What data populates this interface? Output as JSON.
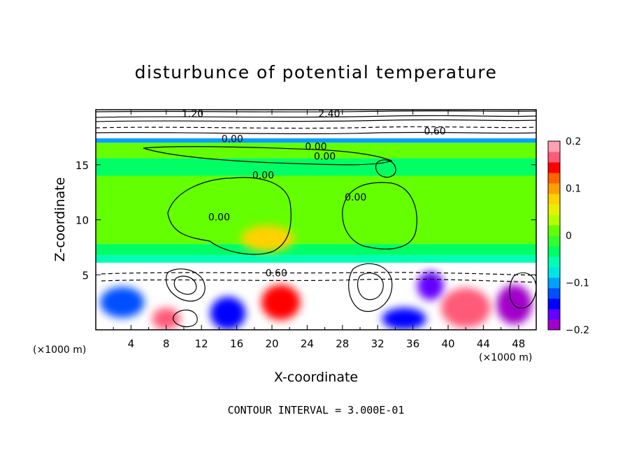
{
  "chart_data": {
    "type": "heatmap",
    "title": "disturbunce of potential temperature",
    "xlabel": "X-coordinate",
    "ylabel": "Z-coordinate",
    "x_unit": "(×1000 m)",
    "z_unit": "(×1000 m)",
    "xlim": [
      0,
      50
    ],
    "ylim": [
      0,
      20
    ],
    "x_ticks": [
      4,
      8,
      12,
      16,
      20,
      24,
      28,
      32,
      36,
      40,
      44,
      48
    ],
    "y_ticks": [
      5,
      10,
      15
    ],
    "colorbar": {
      "range": [
        -0.2,
        0.2
      ],
      "ticks": [
        {
          "value": 0.2,
          "label": "0.2"
        },
        {
          "value": 0.1,
          "label": "0.1"
        },
        {
          "value": 0,
          "label": "0"
        },
        {
          "value": -0.1,
          "label": "−0.1"
        },
        {
          "value": -0.2,
          "label": "−0.2"
        }
      ],
      "colors": [
        "#a000c8",
        "#6400ff",
        "#0000ff",
        "#0050ff",
        "#00a0ff",
        "#00e6e6",
        "#00ffb4",
        "#00ff64",
        "#32ff32",
        "#64ff00",
        "#b4ff00",
        "#e6f000",
        "#ffd200",
        "#ffa000",
        "#ff6400",
        "#ff0000",
        "#ff5a78",
        "#ffa0b4"
      ]
    },
    "bands": [
      {
        "z0": 0,
        "z1": 6.1,
        "value": 0.3
      },
      {
        "z0": 6.1,
        "z1": 6.8,
        "value": -0.06
      },
      {
        "z0": 6.8,
        "z1": 7.8,
        "value": -0.03
      },
      {
        "z0": 7.8,
        "z1": 14.0,
        "value": 0.0
      },
      {
        "z0": 14.0,
        "z1": 15.6,
        "value": -0.03
      },
      {
        "z0": 15.6,
        "z1": 17.0,
        "value": 0.0
      },
      {
        "z0": 17.0,
        "z1": 17.4,
        "value": -0.09
      },
      {
        "z0": 17.4,
        "z1": 20,
        "value": 0.4
      }
    ],
    "blobs": [
      {
        "x": 19.5,
        "z": 8.3,
        "rx": 3.0,
        "rz": 1.2,
        "value": 0.08
      },
      {
        "x": 42,
        "z": 2.0,
        "rx": 2.8,
        "rz": 1.8,
        "value": 0.16
      },
      {
        "x": 15,
        "z": 1.5,
        "rx": 2.0,
        "rz": 1.5,
        "value": -0.15
      },
      {
        "x": 3,
        "z": 2.5,
        "rx": 2.5,
        "rz": 1.4,
        "value": -0.12
      },
      {
        "x": 21,
        "z": 2.5,
        "rx": 2.2,
        "rz": 1.6,
        "value": 0.14
      },
      {
        "x": 35,
        "z": 1.0,
        "rx": 2.5,
        "rz": 1.0,
        "value": -0.14
      },
      {
        "x": 38,
        "z": 4.0,
        "rx": 1.5,
        "rz": 1.3,
        "value": -0.16
      },
      {
        "x": 47.5,
        "z": 2.3,
        "rx": 2.0,
        "rz": 1.8,
        "value": -0.18
      },
      {
        "x": 8,
        "z": 1.0,
        "rx": 1.6,
        "rz": 1.0,
        "value": 0.17
      }
    ],
    "contour_labels": [
      {
        "x": 11,
        "z": 19.6,
        "text": "1.20"
      },
      {
        "x": 26.5,
        "z": 19.6,
        "text": "2.40"
      },
      {
        "x": 38.5,
        "z": 18.0,
        "text": "0.60"
      },
      {
        "x": 15.5,
        "z": 17.3,
        "text": "0.00"
      },
      {
        "x": 25,
        "z": 16.6,
        "text": "0.00"
      },
      {
        "x": 26,
        "z": 15.7,
        "text": "0.00"
      },
      {
        "x": 19,
        "z": 14.0,
        "text": "0.00"
      },
      {
        "x": 14,
        "z": 10.2,
        "text": "0.00"
      },
      {
        "x": 29.5,
        "z": 12.0,
        "text": "0.00"
      },
      {
        "x": 20.5,
        "z": 5.1,
        "text": "0.60"
      }
    ],
    "annotation": "CONTOUR INTERVAL =  3.000E-01"
  }
}
